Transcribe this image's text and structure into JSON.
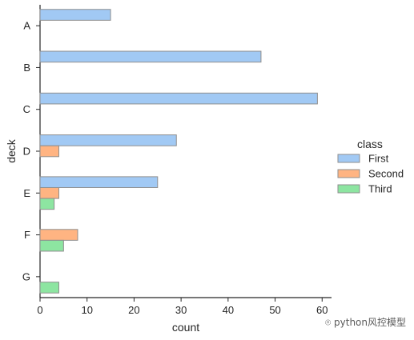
{
  "chart_data": {
    "type": "bar",
    "orientation": "horizontal",
    "xlabel": "count",
    "ylabel": "deck",
    "xlim": [
      0,
      62
    ],
    "xticks": [
      0,
      10,
      20,
      30,
      40,
      50,
      60
    ],
    "categories": [
      "A",
      "B",
      "C",
      "D",
      "E",
      "F",
      "G"
    ],
    "legend": {
      "title": "class",
      "placement": "right"
    },
    "series": [
      {
        "name": "First",
        "color": "#a1c9f4",
        "values": [
          15,
          47,
          59,
          29,
          25,
          null,
          null
        ]
      },
      {
        "name": "Second",
        "color": "#ffb482",
        "values": [
          null,
          null,
          null,
          4,
          4,
          8,
          null
        ]
      },
      {
        "name": "Third",
        "color": "#8de5a1",
        "values": [
          null,
          null,
          null,
          null,
          3,
          5,
          4
        ]
      }
    ],
    "grid": false
  },
  "watermark": "python风控模型"
}
